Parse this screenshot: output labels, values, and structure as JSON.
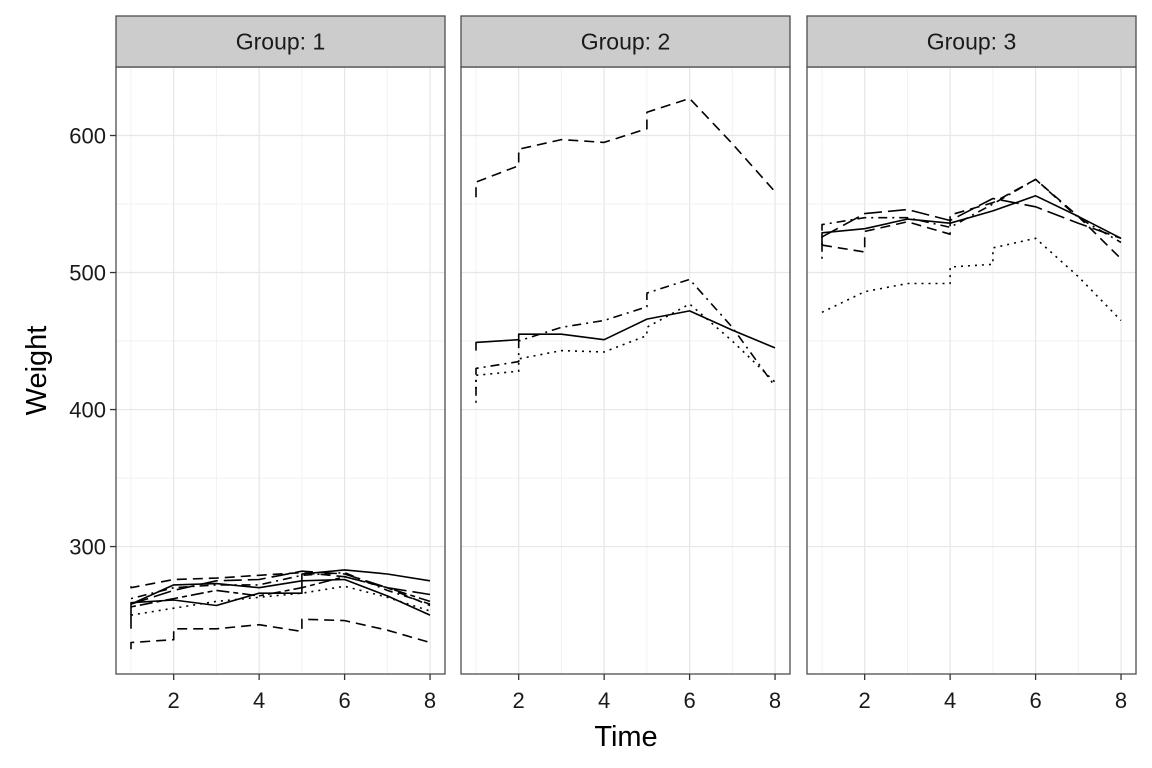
{
  "chart_data": {
    "type": "line",
    "facet_label_prefix": "Group: ",
    "xlabel": "Time",
    "ylabel": "Weight",
    "x_ticks": [
      2,
      4,
      6,
      8
    ],
    "y_ticks": [
      300,
      400,
      500,
      600
    ],
    "xlim": [
      0.65,
      8.35
    ],
    "ylim": [
      207,
      650
    ],
    "grid": true,
    "legend": "none",
    "line_color": "#000000",
    "panels": [
      {
        "group": "1",
        "series": [
          {
            "linetype": "solid",
            "points": [
              [
                1,
                240
              ],
              [
                1,
                259
              ],
              [
                2,
                261
              ],
              [
                3,
                257
              ],
              [
                4,
                266
              ],
              [
                5,
                266
              ],
              [
                5,
                280
              ],
              [
                6,
                283
              ],
              [
                7,
                280
              ],
              [
                8,
                275
              ]
            ]
          },
          {
            "linetype": "dashed",
            "points": [
              [
                1,
                225
              ],
              [
                1,
                230
              ],
              [
                2,
                232
              ],
              [
                2,
                240
              ],
              [
                3,
                240
              ],
              [
                4,
                243
              ],
              [
                5,
                238
              ],
              [
                5,
                247
              ],
              [
                6,
                246
              ],
              [
                7,
                239
              ],
              [
                8,
                230
              ]
            ]
          },
          {
            "linetype": "dotted",
            "points": [
              [
                1,
                250
              ],
              [
                2,
                255
              ],
              [
                3,
                260
              ],
              [
                4,
                263
              ],
              [
                5,
                266
              ],
              [
                6,
                271
              ],
              [
                7,
                263
              ],
              [
                8,
                253
              ]
            ]
          },
          {
            "linetype": "dotdash",
            "points": [
              [
                1,
                262
              ],
              [
                2,
                270
              ],
              [
                3,
                272
              ],
              [
                4,
                272
              ],
              [
                5,
                279
              ],
              [
                6,
                281
              ],
              [
                7,
                268
              ],
              [
                8,
                258
              ]
            ]
          },
          {
            "linetype": "longdash",
            "points": [
              [
                1,
                258
              ],
              [
                2,
                268
              ],
              [
                3,
                275
              ],
              [
                4,
                276
              ],
              [
                5,
                282
              ],
              [
                6,
                280
              ],
              [
                7,
                270
              ],
              [
                8,
                265
              ]
            ]
          },
          {
            "linetype": "twodash",
            "points": [
              [
                1,
                256
              ],
              [
                2,
                262
              ],
              [
                3,
                268
              ],
              [
                4,
                264
              ],
              [
                5,
                270
              ],
              [
                6,
                278
              ],
              [
                7,
                270
              ],
              [
                8,
                260
              ]
            ]
          },
          {
            "linetype": "solid",
            "points": [
              [
                1,
                258
              ],
              [
                2,
                272
              ],
              [
                3,
                273
              ],
              [
                4,
                270
              ],
              [
                5,
                275
              ],
              [
                6,
                276
              ],
              [
                7,
                264
              ],
              [
                8,
                250
              ]
            ]
          },
          {
            "linetype": "dashed",
            "points": [
              [
                1,
                271
              ],
              [
                1,
                270
              ],
              [
                2,
                276
              ],
              [
                3,
                277
              ],
              [
                4,
                279
              ],
              [
                5,
                281
              ],
              [
                6,
                278
              ],
              [
                7,
                270
              ],
              [
                8,
                257
              ]
            ]
          }
        ]
      },
      {
        "group": "2",
        "series": [
          {
            "linetype": "solid",
            "points": [
              [
                1,
                443
              ],
              [
                1,
                449
              ],
              [
                2,
                451
              ],
              [
                2,
                455
              ],
              [
                3,
                455
              ],
              [
                4,
                451
              ],
              [
                5,
                466
              ],
              [
                6,
                472
              ],
              [
                7,
                458
              ],
              [
                8,
                445
              ]
            ]
          },
          {
            "linetype": "dashed",
            "points": [
              [
                1,
                555
              ],
              [
                1,
                566
              ],
              [
                2,
                578
              ],
              [
                2,
                590
              ],
              [
                3,
                597
              ],
              [
                4,
                595
              ],
              [
                5,
                605
              ],
              [
                5,
                617
              ],
              [
                6,
                627
              ],
              [
                7,
                594
              ],
              [
                8,
                559
              ]
            ]
          },
          {
            "linetype": "dotted",
            "points": [
              [
                1,
                415
              ],
              [
                1,
                425
              ],
              [
                2,
                428
              ],
              [
                2,
                437
              ],
              [
                3,
                443
              ],
              [
                4,
                442
              ],
              [
                5,
                454
              ],
              [
                5,
                460
              ],
              [
                6,
                477
              ],
              [
                7,
                450
              ],
              [
                8,
                420
              ]
            ]
          },
          {
            "linetype": "dotdash",
            "points": [
              [
                1,
                405
              ],
              [
                1,
                430
              ],
              [
                2,
                435
              ],
              [
                2,
                450
              ],
              [
                3,
                460
              ],
              [
                4,
                465
              ],
              [
                5,
                475
              ],
              [
                5,
                485
              ],
              [
                6,
                495
              ],
              [
                7,
                460
              ],
              [
                8,
                417
              ]
            ]
          }
        ]
      },
      {
        "group": "3",
        "series": [
          {
            "linetype": "solid",
            "points": [
              [
                1,
                520
              ],
              [
                1,
                529
              ],
              [
                2,
                532
              ],
              [
                3,
                539
              ],
              [
                4,
                536
              ],
              [
                5,
                545
              ],
              [
                6,
                556
              ],
              [
                7,
                541
              ],
              [
                8,
                525
              ]
            ]
          },
          {
            "linetype": "dashed",
            "points": [
              [
                1,
                520
              ],
              [
                2,
                515
              ],
              [
                2,
                530
              ],
              [
                3,
                537
              ],
              [
                4,
                528
              ],
              [
                4,
                542
              ],
              [
                5,
                551
              ],
              [
                6,
                568
              ],
              [
                7,
                541
              ],
              [
                8,
                510
              ]
            ]
          },
          {
            "linetype": "dotted",
            "points": [
              [
                1,
                471
              ],
              [
                2,
                486
              ],
              [
                3,
                492
              ],
              [
                4,
                492
              ],
              [
                4,
                504
              ],
              [
                5,
                506
              ],
              [
                5,
                518
              ],
              [
                6,
                525
              ],
              [
                7,
                497
              ],
              [
                8,
                465
              ]
            ]
          },
          {
            "linetype": "dotdash",
            "points": [
              [
                1,
                510
              ],
              [
                1,
                535
              ],
              [
                2,
                540
              ],
              [
                3,
                540
              ],
              [
                4,
                533
              ],
              [
                5,
                550
              ],
              [
                6,
                568
              ],
              [
                7,
                540
              ],
              [
                8,
                522
              ]
            ]
          },
          {
            "linetype": "longdash",
            "points": [
              [
                1,
                526
              ],
              [
                2,
                543
              ],
              [
                3,
                546
              ],
              [
                4,
                538
              ],
              [
                5,
                554
              ],
              [
                6,
                548
              ],
              [
                7,
                536
              ],
              [
                8,
                525
              ]
            ]
          }
        ]
      }
    ]
  }
}
